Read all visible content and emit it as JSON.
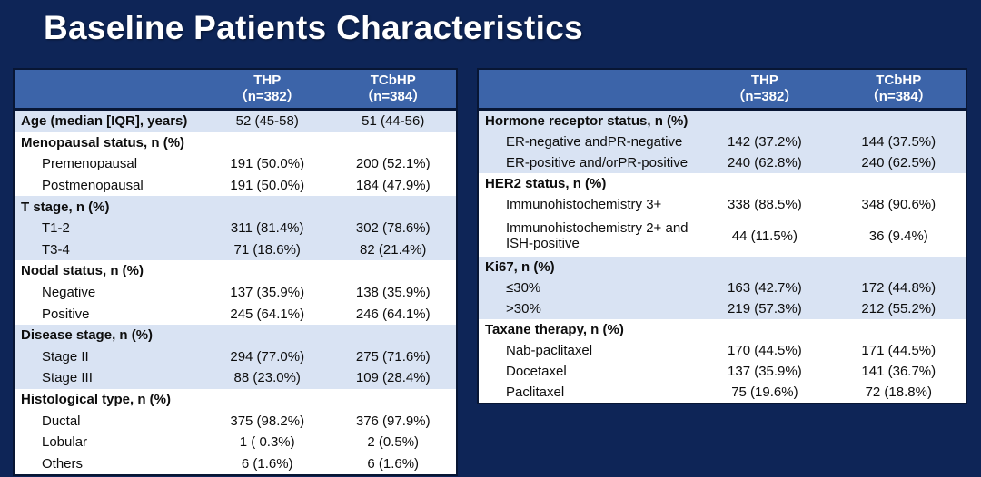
{
  "slide": {
    "title": "Baseline Patients Characteristics"
  },
  "colors": {
    "background": "#0e2557",
    "table_header": "#3c64a9",
    "band_light": "#d9e3f3",
    "band_white": "#ffffff",
    "border": "#081634",
    "header_text": "#ffffff",
    "body_text": "#0d0d0d"
  },
  "tables": [
    {
      "name": "baseline-characteristics-left",
      "columns": [
        {
          "line1": "",
          "line2": ""
        },
        {
          "line1": "THP",
          "line2": "（n=382）"
        },
        {
          "line1": "TCbHP",
          "line2": "（n=384）"
        }
      ],
      "sections": [
        {
          "shaded": true,
          "rows": [
            {
              "label": "Age (median [IQR], years)",
              "bold": true,
              "indent": false,
              "values": [
                "52 (45-58)",
                "51 (44-56)"
              ]
            }
          ]
        },
        {
          "shaded": false,
          "rows": [
            {
              "label": "Menopausal status, n (%)",
              "bold": true,
              "indent": false,
              "values": [
                "",
                ""
              ]
            },
            {
              "label": "Premenopausal",
              "bold": false,
              "indent": true,
              "values": [
                "191 (50.0%)",
                "200 (52.1%)"
              ]
            },
            {
              "label": "Postmenopausal",
              "bold": false,
              "indent": true,
              "values": [
                "191 (50.0%)",
                "184 (47.9%)"
              ]
            }
          ]
        },
        {
          "shaded": true,
          "rows": [
            {
              "label": "T stage, n (%)",
              "bold": true,
              "indent": false,
              "values": [
                "",
                ""
              ]
            },
            {
              "label": "T1-2",
              "bold": false,
              "indent": true,
              "values": [
                "311 (81.4%)",
                "302 (78.6%)"
              ]
            },
            {
              "label": "T3-4",
              "bold": false,
              "indent": true,
              "values": [
                "71 (18.6%)",
                "82 (21.4%)"
              ]
            }
          ]
        },
        {
          "shaded": false,
          "rows": [
            {
              "label": "Nodal status, n (%)",
              "bold": true,
              "indent": false,
              "values": [
                "",
                ""
              ]
            },
            {
              "label": "Negative",
              "bold": false,
              "indent": true,
              "values": [
                "137 (35.9%)",
                "138 (35.9%)"
              ]
            },
            {
              "label": "Positive",
              "bold": false,
              "indent": true,
              "values": [
                "245 (64.1%)",
                "246 (64.1%)"
              ]
            }
          ]
        },
        {
          "shaded": true,
          "rows": [
            {
              "label": "Disease stage, n (%)",
              "bold": true,
              "indent": false,
              "values": [
                "",
                ""
              ]
            },
            {
              "label": "Stage II",
              "bold": false,
              "indent": true,
              "values": [
                "294 (77.0%)",
                "275 (71.6%)"
              ]
            },
            {
              "label": "Stage III",
              "bold": false,
              "indent": true,
              "values": [
                "88 (23.0%)",
                "109 (28.4%)"
              ]
            }
          ]
        },
        {
          "shaded": false,
          "rows": [
            {
              "label": "Histological type, n (%)",
              "bold": true,
              "indent": false,
              "values": [
                "",
                ""
              ]
            },
            {
              "label": "Ductal",
              "bold": false,
              "indent": true,
              "values": [
                "375 (98.2%)",
                "376 (97.9%)"
              ]
            },
            {
              "label": "Lobular",
              "bold": false,
              "indent": true,
              "values": [
                "1 ( 0.3%)",
                "2 (0.5%)"
              ]
            },
            {
              "label": "Others",
              "bold": false,
              "indent": true,
              "values": [
                "6 (1.6%)",
                "6 (1.6%)"
              ]
            }
          ]
        }
      ]
    },
    {
      "name": "baseline-characteristics-right",
      "columns": [
        {
          "line1": "",
          "line2": ""
        },
        {
          "line1": "THP",
          "line2": "（n=382）"
        },
        {
          "line1": "TCbHP",
          "line2": "（n=384）"
        }
      ],
      "sections": [
        {
          "shaded": true,
          "rows": [
            {
              "label": "Hormone receptor status, n (%)",
              "bold": true,
              "indent": false,
              "values": [
                "",
                ""
              ]
            },
            {
              "label": "ER-negative andPR-negative",
              "bold": false,
              "indent": true,
              "values": [
                "142 (37.2%)",
                "144 (37.5%)"
              ]
            },
            {
              "label": "ER-positive and/orPR-positive",
              "bold": false,
              "indent": true,
              "values": [
                "240 (62.8%)",
                "240 (62.5%)"
              ]
            }
          ]
        },
        {
          "shaded": false,
          "rows": [
            {
              "label": "HER2 status, n (%)",
              "bold": true,
              "indent": false,
              "values": [
                "",
                ""
              ]
            },
            {
              "label": "Immunohistochemistry 3+",
              "bold": false,
              "indent": true,
              "values": [
                "338 (88.5%)",
                "348 (90.6%)"
              ]
            },
            {
              "label": "Immunohistochemistry 2+ and ISH-positive",
              "bold": false,
              "indent": true,
              "tall": true,
              "values": [
                "44 (11.5%)",
                "36 (9.4%)"
              ]
            }
          ]
        },
        {
          "shaded": true,
          "rows": [
            {
              "label": "Ki67, n (%)",
              "bold": true,
              "indent": false,
              "values": [
                "",
                ""
              ]
            },
            {
              "label": "≤30%",
              "bold": false,
              "indent": true,
              "values": [
                "163 (42.7%)",
                "172 (44.8%)"
              ]
            },
            {
              "label": ">30%",
              "bold": false,
              "indent": true,
              "values": [
                "219 (57.3%)",
                "212 (55.2%)"
              ]
            }
          ]
        },
        {
          "shaded": false,
          "rows": [
            {
              "label": "Taxane therapy, n (%)",
              "bold": true,
              "indent": false,
              "values": [
                "",
                ""
              ]
            },
            {
              "label": "Nab-paclitaxel",
              "bold": false,
              "indent": true,
              "values": [
                "170 (44.5%)",
                "171 (44.5%)"
              ]
            },
            {
              "label": "Docetaxel",
              "bold": false,
              "indent": true,
              "values": [
                "137 (35.9%)",
                "141 (36.7%)"
              ]
            },
            {
              "label": "Paclitaxel",
              "bold": false,
              "indent": true,
              "values": [
                "75 (19.6%)",
                "72 (18.8%)"
              ]
            }
          ]
        }
      ]
    }
  ]
}
